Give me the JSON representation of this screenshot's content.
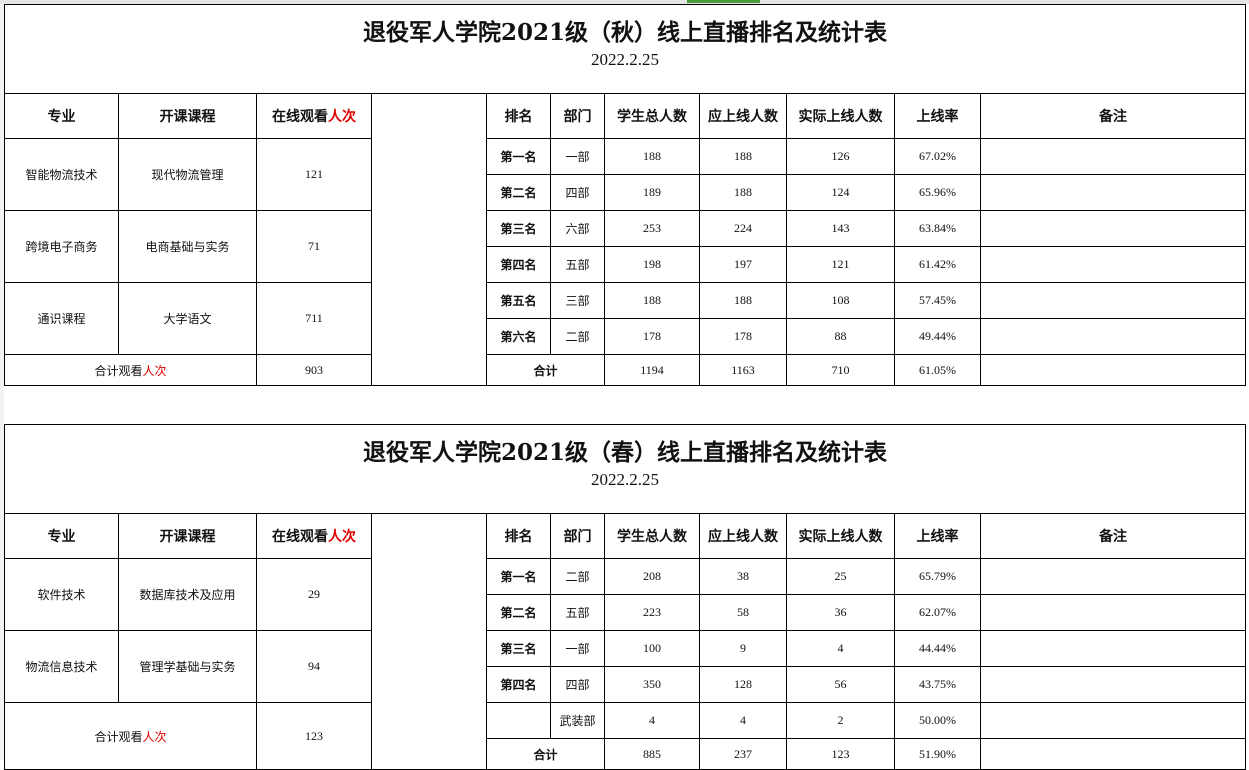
{
  "sections": [
    {
      "title": "退役军人学院2021级（秋）线上直播排名及统计表",
      "date": "2022.2.25",
      "left_headers": [
        "专业",
        "开课课程"
      ],
      "watch_header": {
        "text": "在线观看",
        "red": "人次"
      },
      "right_headers": [
        "排名",
        "部门",
        "学生总人数",
        "应上线人数",
        "实际上线人数",
        "上线率",
        "备注"
      ],
      "courses": [
        {
          "major": "智能物流技术",
          "course": "现代物流管理",
          "views": "121"
        },
        {
          "major": "跨境电子商务",
          "course": "电商基础与实务",
          "views": "71"
        },
        {
          "major": "通识课程",
          "course": "大学语文",
          "views": "711"
        }
      ],
      "course_total": {
        "label": "合计观看",
        "red": "人次",
        "views": "903"
      },
      "rankings": [
        {
          "rank": "第一名",
          "dept": "一部",
          "total": "188",
          "expected": "188",
          "actual": "126",
          "rate": "67.02%",
          "note": ""
        },
        {
          "rank": "第二名",
          "dept": "四部",
          "total": "189",
          "expected": "188",
          "actual": "124",
          "rate": "65.96%",
          "note": ""
        },
        {
          "rank": "第三名",
          "dept": "六部",
          "total": "253",
          "expected": "224",
          "actual": "143",
          "rate": "63.84%",
          "note": ""
        },
        {
          "rank": "第四名",
          "dept": "五部",
          "total": "198",
          "expected": "197",
          "actual": "121",
          "rate": "61.42%",
          "note": ""
        },
        {
          "rank": "第五名",
          "dept": "三部",
          "total": "188",
          "expected": "188",
          "actual": "108",
          "rate": "57.45%",
          "note": ""
        },
        {
          "rank": "第六名",
          "dept": "二部",
          "total": "178",
          "expected": "178",
          "actual": "88",
          "rate": "49.44%",
          "note": ""
        }
      ],
      "ranking_total": {
        "label": "合计",
        "total": "1194",
        "expected": "1163",
        "actual": "710",
        "rate": "61.05%"
      }
    },
    {
      "title": "退役军人学院2021级（春）线上直播排名及统计表",
      "date": "2022.2.25",
      "left_headers": [
        "专业",
        "开课课程"
      ],
      "watch_header": {
        "text": "在线观看",
        "red": "人次"
      },
      "right_headers": [
        "排名",
        "部门",
        "学生总人数",
        "应上线人数",
        "实际上线人数",
        "上线率",
        "备注"
      ],
      "courses": [
        {
          "major": "软件技术",
          "course": "数据库技术及应用",
          "views": "29"
        },
        {
          "major": "物流信息技术",
          "course": "管理学基础与实务",
          "views": "94"
        }
      ],
      "course_total": {
        "label": "合计观看",
        "red": "人次",
        "views": "123"
      },
      "rankings": [
        {
          "rank": "第一名",
          "dept": "二部",
          "total": "208",
          "expected": "38",
          "actual": "25",
          "rate": "65.79%",
          "note": ""
        },
        {
          "rank": "第二名",
          "dept": "五部",
          "total": "223",
          "expected": "58",
          "actual": "36",
          "rate": "62.07%",
          "note": ""
        },
        {
          "rank": "第三名",
          "dept": "一部",
          "total": "100",
          "expected": "9",
          "actual": "4",
          "rate": "44.44%",
          "note": ""
        },
        {
          "rank": "第四名",
          "dept": "四部",
          "total": "350",
          "expected": "128",
          "actual": "56",
          "rate": "43.75%",
          "note": ""
        },
        {
          "rank": "",
          "dept": "武装部",
          "total": "4",
          "expected": "4",
          "actual": "2",
          "rate": "50.00%",
          "note": ""
        }
      ],
      "ranking_total": {
        "label": "合计",
        "total": "885",
        "expected": "237",
        "actual": "123",
        "rate": "51.90%"
      }
    }
  ],
  "colors": {
    "highlight_red": "#e00000",
    "sheet_tab_green": "#4a9a3a"
  }
}
